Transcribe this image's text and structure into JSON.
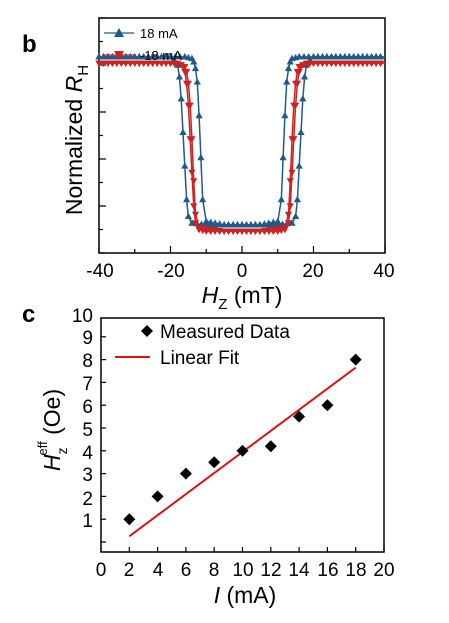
{
  "panel_b": {
    "label": "b",
    "ylabel_main": "Normalized ",
    "ylabel_var": "R",
    "ylabel_sub": "H",
    "xlabel_var": "H",
    "xlabel_sub": "Z",
    "xlabel_unit": " (mT)",
    "xticks": [
      "-40",
      "-20",
      "0",
      "20",
      "40"
    ]
  },
  "panel_c": {
    "label": "c",
    "ylabel_var": "H",
    "ylabel_sub": "z",
    "ylabel_sup": "eff",
    "ylabel_unit": " (Oe)",
    "xlabel_var": "I",
    "xlabel_unit": " (mA)",
    "xticks": [
      "0",
      "2",
      "4",
      "6",
      "8",
      "10",
      "12",
      "14",
      "16",
      "18",
      "20"
    ],
    "yticks": [
      "1",
      "2",
      "3",
      "4",
      "5",
      "6",
      "7",
      "8",
      "9",
      "10"
    ]
  },
  "chart_data": [
    {
      "type": "line",
      "xlim": [
        -40,
        40
      ],
      "ylim": [
        0,
        1
      ],
      "yticks_labeled": false,
      "legend_position": "top-left",
      "series": [
        {
          "name": "18 mA",
          "color": "#1f5a8c",
          "marker": "triangle-up",
          "x": [
            -40,
            -30,
            -20,
            -16,
            -14,
            -13.5,
            -13,
            -12.5,
            -12,
            -11.5,
            -11,
            -10,
            -5,
            0,
            5,
            10,
            14,
            15,
            15.5,
            16,
            16.5,
            17,
            17.5,
            18,
            19,
            20,
            30,
            40
          ],
          "y": [
            1,
            1,
            1,
            1,
            0.99,
            0.97,
            0.93,
            0.85,
            0.65,
            0.4,
            0.15,
            0.02,
            0,
            0,
            0,
            0,
            0.01,
            0.05,
            0.15,
            0.35,
            0.55,
            0.75,
            0.88,
            0.95,
            0.98,
            1,
            1,
            1
          ]
        },
        {
          "name": "-18 mA",
          "color": "#cc2222",
          "marker": "triangle-down",
          "x": [
            -40,
            -30,
            -20,
            -18,
            -16,
            -15.5,
            -15,
            -14.5,
            -14,
            -13.5,
            -13,
            -12,
            -5,
            0,
            5,
            10,
            12,
            13,
            13.5,
            14,
            14.5,
            15,
            15.5,
            16,
            17,
            20,
            30,
            40
          ],
          "y": [
            1,
            1,
            1,
            1,
            0.98,
            0.95,
            0.88,
            0.75,
            0.55,
            0.3,
            0.1,
            0.02,
            0,
            0,
            0,
            0,
            0.01,
            0.05,
            0.15,
            0.35,
            0.55,
            0.75,
            0.88,
            0.95,
            0.99,
            1,
            1,
            1
          ]
        }
      ]
    },
    {
      "type": "scatter",
      "xlabel": "I (mA)",
      "ylabel": "H_z^eff (Oe)",
      "xlim": [
        0,
        20
      ],
      "ylim": [
        0.5,
        10
      ],
      "legend_position": "top-left",
      "series": [
        {
          "name": "Measured Data",
          "color": "#000000",
          "marker": "diamond",
          "x": [
            2,
            4,
            6,
            8,
            10,
            12,
            14,
            16,
            18
          ],
          "y": [
            2.0,
            3.0,
            4.0,
            4.5,
            5.0,
            5.2,
            6.5,
            7.0,
            9.0
          ]
        },
        {
          "name": "Linear Fit",
          "color": "#dd1111",
          "type": "line",
          "x": [
            2,
            18
          ],
          "y": [
            1.25,
            8.65
          ]
        }
      ]
    }
  ]
}
